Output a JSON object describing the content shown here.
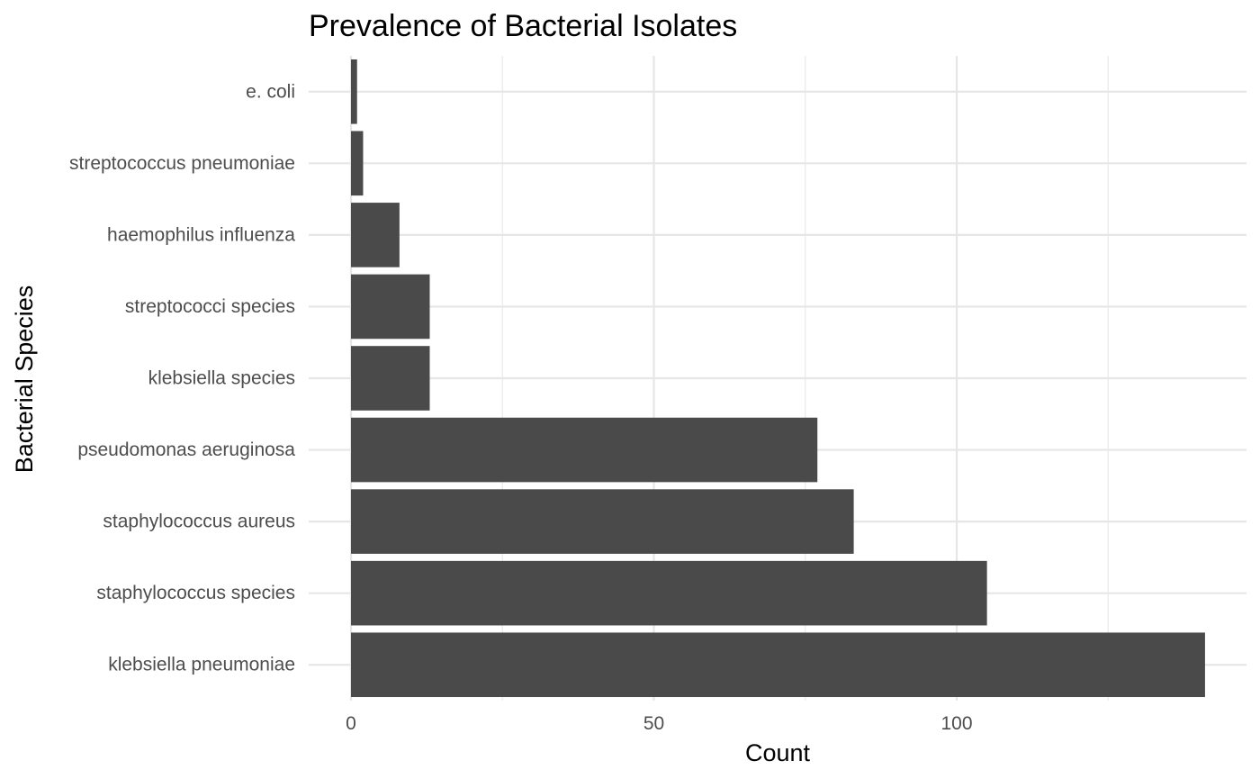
{
  "chart_data": {
    "type": "bar",
    "orientation": "horizontal",
    "title": "Prevalence of Bacterial Isolates",
    "xlabel": "Count",
    "ylabel": "Bacterial Species",
    "categories": [
      "klebsiella pneumoniae",
      "staphylococcus species",
      "staphylococcus aureus",
      "pseudomonas aeruginosa",
      "klebsiella species",
      "streptococci species",
      "haemophilus influenza",
      "streptococcus pneumoniae",
      "e. coli"
    ],
    "values": [
      141,
      105,
      83,
      77,
      13,
      13,
      8,
      2,
      1
    ],
    "xlim": [
      0,
      141
    ],
    "xticks": [
      0,
      50,
      100
    ],
    "grid": true,
    "bar_color": "#4a4a4a",
    "grid_color": "#e6e6e6"
  }
}
